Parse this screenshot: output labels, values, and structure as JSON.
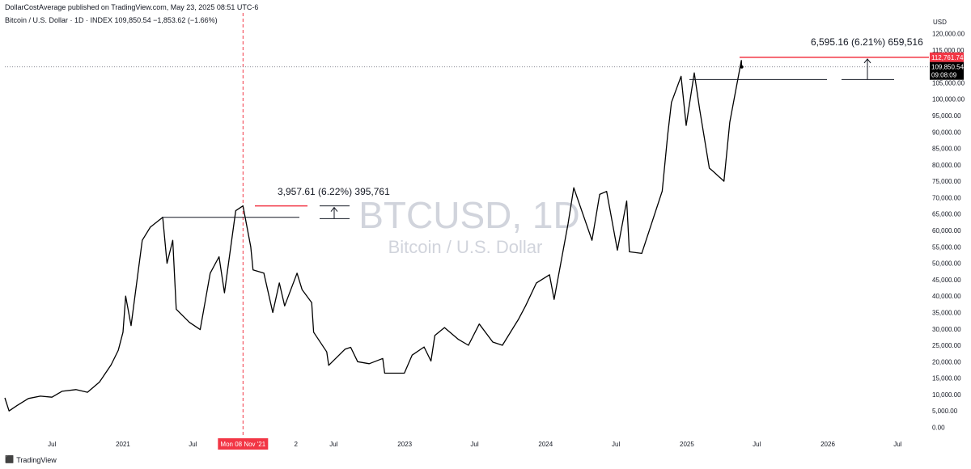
{
  "header": {
    "published": "DollarCostAverage published on TradingView.com, May 23, 2025 08:51 UTC-6",
    "symbol_line": "Bitcoin / U.S. Dollar · 1D · INDEX",
    "last": "109,850.54",
    "change": "−1,853.62 (−1.66%)"
  },
  "watermark": {
    "ticker": "BTCUSD, 1D",
    "name": "Bitcoin / U.S. Dollar"
  },
  "brand": {
    "label": "TradingView",
    "logo_icon": "tradingview-logo-icon"
  },
  "chart_data": {
    "type": "line",
    "title": "",
    "xlabel": "",
    "ylabel": "USD",
    "ylim": [
      0,
      120000
    ],
    "y_ticks": [
      "0.00",
      "5,000.00",
      "10,000.00",
      "15,000.00",
      "20,000.00",
      "25,000.00",
      "30,000.00",
      "35,000.00",
      "40,000.00",
      "45,000.00",
      "50,000.00",
      "55,000.00",
      "60,000.00",
      "65,000.00",
      "70,000.00",
      "75,000.00",
      "80,000.00",
      "85,000.00",
      "90,000.00",
      "95,000.00",
      "100,000.00",
      "105,000.00",
      "110,000.00",
      "115,000.00",
      "120,000.00"
    ],
    "x_ticks": [
      "Jul",
      "2021",
      "Jul",
      "Mon 08 Nov '21",
      "2",
      "Jul",
      "2023",
      "Jul",
      "2024",
      "Jul",
      "2025",
      "Jul",
      "2026",
      "Jul"
    ],
    "series": [
      {
        "values": [
          [
            "2020-03-01",
            9000
          ],
          [
            "2020-03-12",
            5000
          ],
          [
            "2020-04-01",
            6600
          ],
          [
            "2020-05-01",
            8800
          ],
          [
            "2020-06-01",
            9500
          ],
          [
            "2020-07-01",
            9200
          ],
          [
            "2020-07-27",
            11000
          ],
          [
            "2020-09-01",
            11500
          ],
          [
            "2020-10-01",
            10700
          ],
          [
            "2020-11-01",
            13800
          ],
          [
            "2020-12-01",
            19000
          ],
          [
            "2020-12-20",
            23500
          ],
          [
            "2021-01-01",
            29000
          ],
          [
            "2021-01-08",
            40000
          ],
          [
            "2021-01-22",
            31000
          ],
          [
            "2021-02-20",
            57000
          ],
          [
            "2021-03-13",
            61000
          ],
          [
            "2021-04-14",
            64000
          ],
          [
            "2021-04-25",
            50000
          ],
          [
            "2021-05-10",
            57000
          ],
          [
            "2021-05-19",
            36000
          ],
          [
            "2021-06-22",
            32000
          ],
          [
            "2021-07-20",
            29800
          ],
          [
            "2021-08-15",
            47000
          ],
          [
            "2021-09-07",
            52000
          ],
          [
            "2021-09-21",
            41000
          ],
          [
            "2021-10-20",
            66000
          ],
          [
            "2021-11-08",
            67500
          ],
          [
            "2021-11-28",
            55000
          ],
          [
            "2021-12-04",
            48000
          ],
          [
            "2022-01-01",
            47000
          ],
          [
            "2022-01-24",
            35000
          ],
          [
            "2022-02-10",
            44000
          ],
          [
            "2022-02-24",
            37000
          ],
          [
            "2022-03-28",
            47000
          ],
          [
            "2022-04-10",
            42000
          ],
          [
            "2022-05-05",
            38000
          ],
          [
            "2022-05-10",
            29000
          ],
          [
            "2022-06-13",
            23000
          ],
          [
            "2022-06-18",
            18900
          ],
          [
            "2022-07-30",
            23800
          ],
          [
            "2022-08-14",
            24400
          ],
          [
            "2022-09-01",
            20000
          ],
          [
            "2022-10-01",
            19400
          ],
          [
            "2022-11-05",
            21000
          ],
          [
            "2022-11-10",
            16500
          ],
          [
            "2022-12-31",
            16500
          ],
          [
            "2023-01-20",
            22000
          ],
          [
            "2023-02-20",
            24500
          ],
          [
            "2023-03-10",
            20200
          ],
          [
            "2023-03-20",
            28000
          ],
          [
            "2023-04-14",
            30400
          ],
          [
            "2023-05-20",
            26800
          ],
          [
            "2023-06-15",
            25000
          ],
          [
            "2023-07-13",
            31500
          ],
          [
            "2023-08-17",
            26000
          ],
          [
            "2023-09-11",
            25000
          ],
          [
            "2023-10-23",
            33000
          ],
          [
            "2023-11-10",
            37000
          ],
          [
            "2023-12-08",
            44000
          ],
          [
            "2024-01-11",
            46500
          ],
          [
            "2024-01-23",
            39000
          ],
          [
            "2024-02-28",
            62000
          ],
          [
            "2024-03-14",
            73000
          ],
          [
            "2024-04-30",
            57000
          ],
          [
            "2024-05-20",
            71000
          ],
          [
            "2024-06-07",
            71900
          ],
          [
            "2024-07-05",
            54000
          ],
          [
            "2024-07-29",
            69000
          ],
          [
            "2024-08-05",
            53500
          ],
          [
            "2024-09-06",
            53000
          ],
          [
            "2024-10-29",
            72000
          ],
          [
            "2024-11-12",
            89000
          ],
          [
            "2024-11-22",
            99000
          ],
          [
            "2024-12-17",
            107000
          ],
          [
            "2024-12-30",
            92000
          ],
          [
            "2025-01-20",
            108000
          ],
          [
            "2025-02-03",
            97000
          ],
          [
            "2025-02-28",
            79000
          ],
          [
            "2025-03-10",
            78000
          ],
          [
            "2025-04-07",
            75000
          ],
          [
            "2025-04-22",
            93000
          ],
          [
            "2025-05-08",
            103000
          ],
          [
            "2025-05-22",
            111800
          ],
          [
            "2025-05-23",
            109850
          ]
        ]
      }
    ],
    "lines": {
      "last_price": "109,850.54",
      "countdown": "09:08:09",
      "high_price": "112,761.74"
    },
    "annotations": [
      {
        "label": "3,957.61 (6.22%) 395,761"
      },
      {
        "label": "6,595.16 (6.21%) 659,516"
      }
    ],
    "colors": {
      "price_line": "#000000",
      "accent_red": "#f23645",
      "grid_dotted": "#787b86"
    }
  }
}
